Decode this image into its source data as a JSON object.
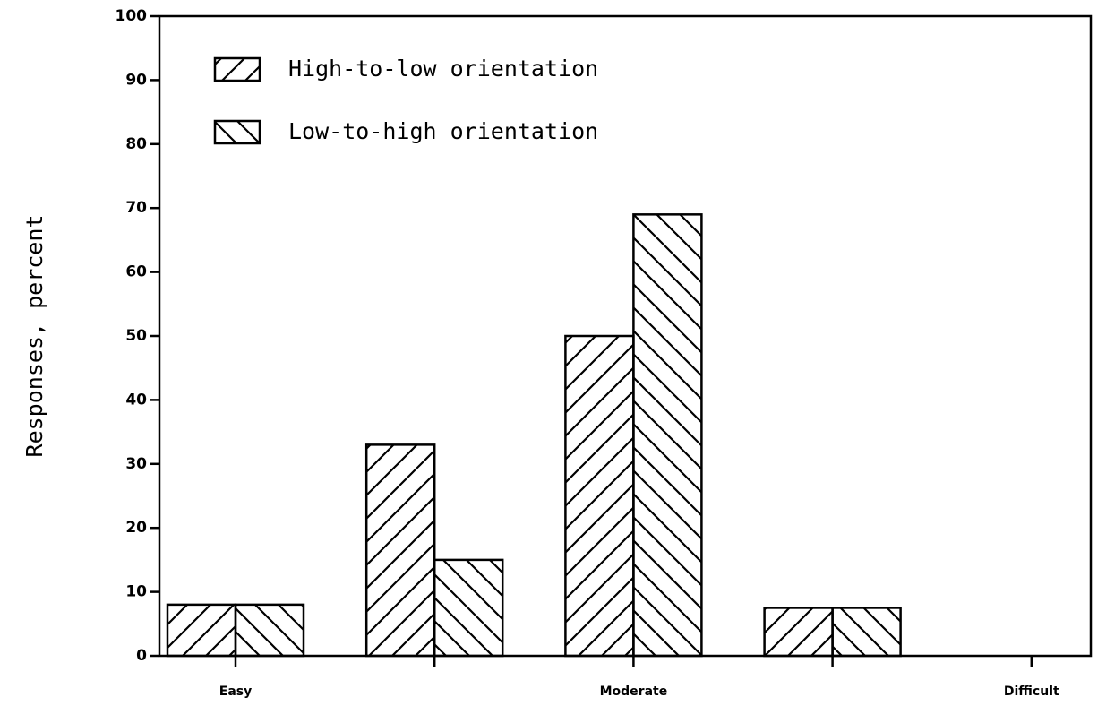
{
  "chart_data": {
    "type": "bar",
    "ylabel": "Responses, percent",
    "categories": [
      "Easy",
      null,
      "Moderate",
      null,
      "Difficult"
    ],
    "series": [
      {
        "name": "High-to-low orientation",
        "color": "#000000",
        "hatch": "forward",
        "values": [
          8,
          33,
          50,
          7.5,
          0
        ]
      },
      {
        "name": "Low-to-high orientation",
        "color": "#000000",
        "hatch": "back",
        "values": [
          8,
          15,
          69,
          7.5,
          0
        ]
      }
    ],
    "ylim": [
      0,
      100
    ],
    "yticks": [
      0,
      10,
      20,
      30,
      40,
      50,
      60,
      70,
      80,
      90,
      100
    ],
    "legend": "upper left",
    "grid": false
  }
}
